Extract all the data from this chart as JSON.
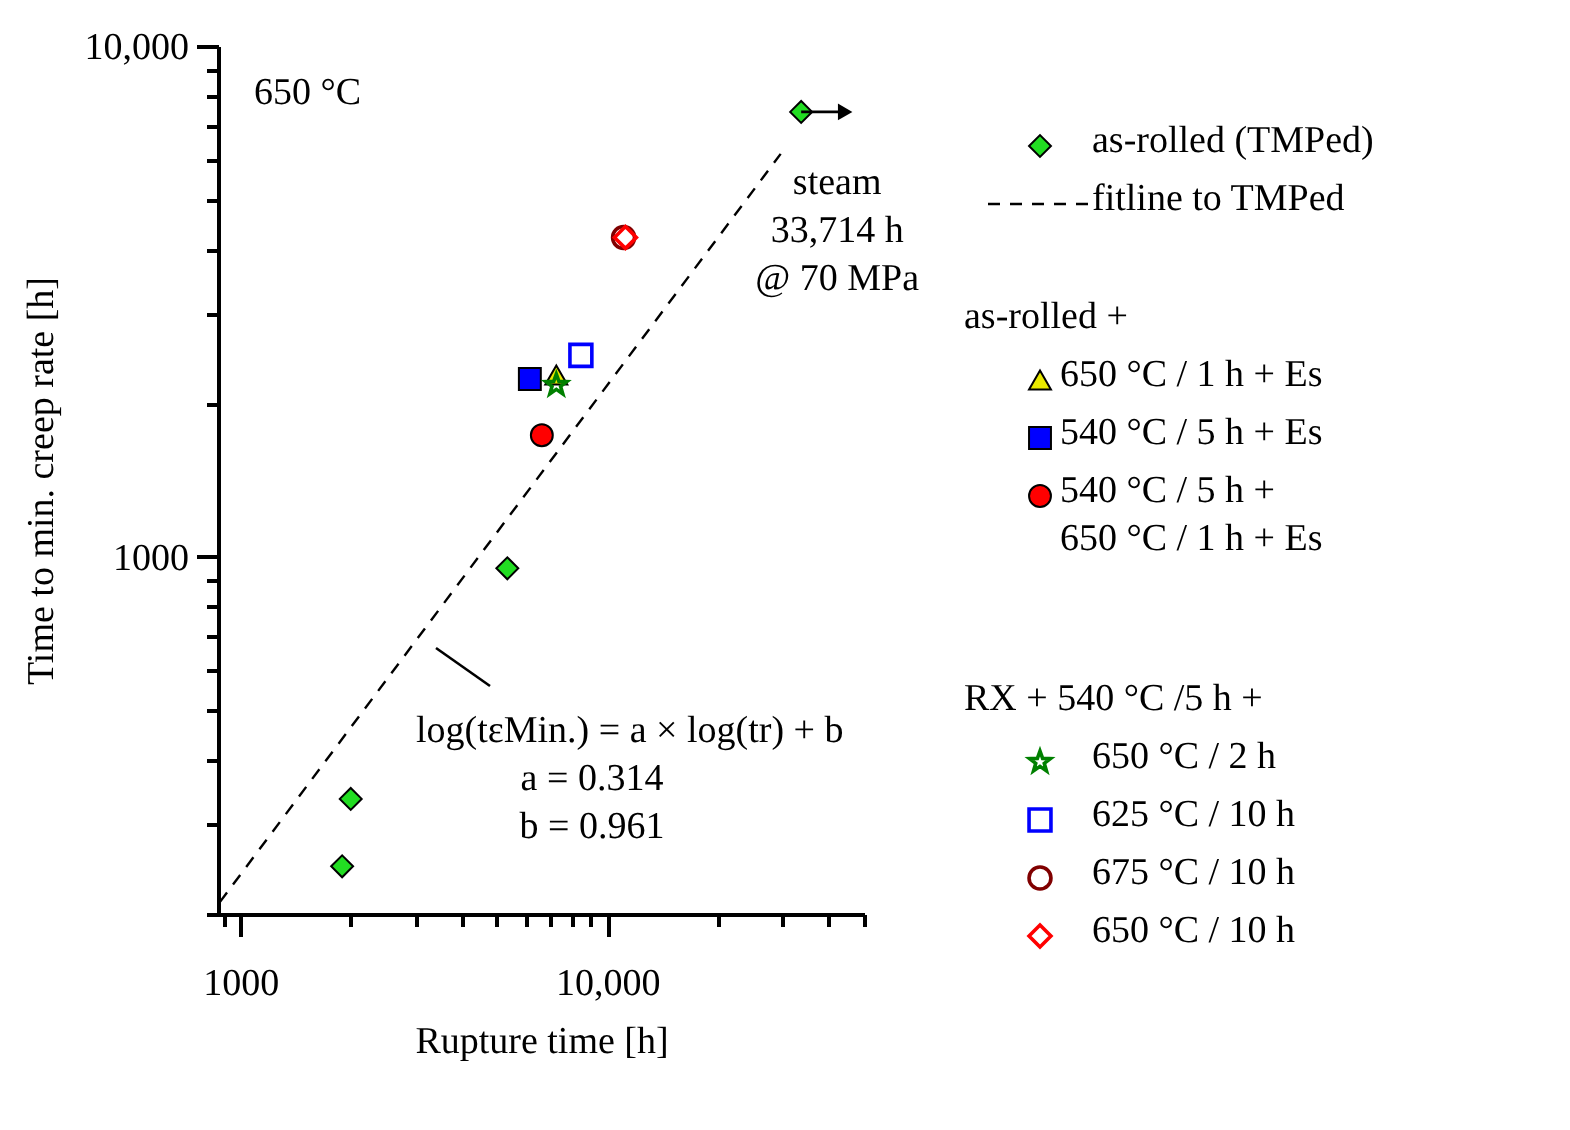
{
  "chart_data": {
    "type": "scatter",
    "xlabel": "Rupture time [h]",
    "ylabel": "Time to min. creep rate [h]",
    "log": "xy",
    "grid": false,
    "legend": "right",
    "xlim": [
      870,
      50000
    ],
    "ylim": [
      200,
      10000
    ],
    "xticks": [
      {
        "value": 900,
        "label": null
      },
      1000,
      {
        "value": 2000,
        "label": null
      },
      {
        "value": 3000,
        "label": null
      },
      {
        "value": 4000,
        "label": null
      },
      {
        "value": 5000,
        "label": null
      },
      {
        "value": 6000,
        "label": null
      },
      {
        "value": 7000,
        "label": null
      },
      {
        "value": 8000,
        "label": null
      },
      {
        "value": 9000,
        "label": null
      },
      {
        "value": 10000,
        "label": "10,000"
      },
      {
        "value": 20000,
        "label": null
      },
      {
        "value": 30000,
        "label": null
      },
      {
        "value": 40000,
        "label": null
      },
      {
        "value": 50000,
        "label": null
      }
    ],
    "yticks": [
      {
        "value": 200,
        "label": null
      },
      {
        "value": 300,
        "label": null
      },
      {
        "value": 400,
        "label": null
      },
      {
        "value": 500,
        "label": null
      },
      {
        "value": 600,
        "label": null
      },
      {
        "value": 700,
        "label": null
      },
      {
        "value": 800,
        "label": null
      },
      {
        "value": 900,
        "label": null
      },
      1000,
      {
        "value": 2000,
        "label": null
      },
      {
        "value": 3000,
        "label": null
      },
      {
        "value": 4000,
        "label": null
      },
      {
        "value": 5000,
        "label": null
      },
      {
        "value": 6000,
        "label": null
      },
      {
        "value": 7000,
        "label": null
      },
      {
        "value": 8000,
        "label": null
      },
      {
        "value": 9000,
        "label": null
      },
      {
        "value": 10000,
        "label": "10,000"
      }
    ],
    "series": [
      {
        "name": "as-rolled (TMPed)",
        "marker": "diamond",
        "color": "#22dd22",
        "x": [
          33714,
          5340,
          2000,
          1895
        ],
        "values": [
          7430,
          950,
          336,
          248
        ]
      },
      {
        "name": "fitline to TMPed",
        "type": "line",
        "line_style": "dashed",
        "marker": "none",
        "color": "#000000",
        "x": [
          880,
          29650
        ],
        "values": [
          211,
          6150
        ]
      },
      {
        "name": "650 °C / 1 h + Es",
        "marker": "triangle",
        "color": "#e8e800",
        "x": [
          7260
        ],
        "values": [
          2270
        ]
      },
      {
        "name": "540 °C / 5 h + Es",
        "marker": "square",
        "color": "#0000ff",
        "x": [
          6150
        ],
        "values": [
          2230
        ]
      },
      {
        "name": "540 °C / 5 h +\n650 °C / 1 h + Es",
        "marker": "circle",
        "color": "#ff0000",
        "x": [
          6630
        ],
        "values": [
          1730
        ]
      },
      {
        "name": "650 °C / 2 h",
        "marker": "star",
        "color": "#008000",
        "x": [
          7260
        ],
        "values": [
          2170
        ]
      },
      {
        "name": "625 °C / 10 h",
        "marker": "square",
        "color": "#0000ff",
        "x": [
          8470
        ],
        "values": [
          2480
        ]
      },
      {
        "name": "675 °C / 10 h",
        "marker": "circle",
        "color": "#800000",
        "x": [
          11070
        ],
        "values": [
          4220
        ]
      },
      {
        "name": "650 °C / 10 h",
        "marker": "diamond",
        "color": "#ff0000",
        "x": [
          11200
        ],
        "values": [
          4220
        ]
      }
    ],
    "annotations": [
      "650 °C",
      {
        "text": "steam\n33,714 h\n@ 70 MPa",
        "x": 33714,
        "y": 7430
      },
      "log(tεMin.) = a × log(tr) + b\na = 0.314\nb = 0.961",
      "as-rolled +",
      "RX + 540 °C /5 h +"
    ]
  }
}
